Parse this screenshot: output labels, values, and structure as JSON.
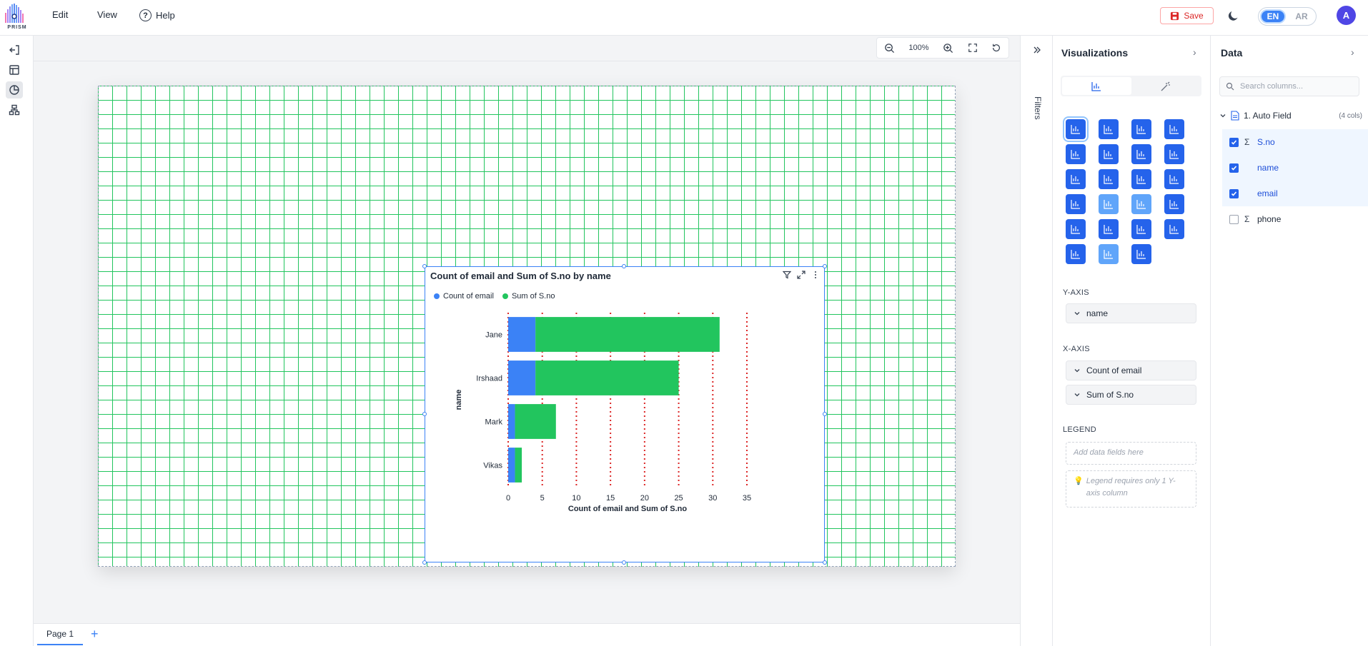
{
  "app": {
    "logo_text": "PRISM"
  },
  "topbar": {
    "menu_edit": "Edit",
    "menu_view": "View",
    "menu_help": "Help",
    "save_label": "Save",
    "lang_en": "EN",
    "lang_ar": "AR",
    "avatar_initial": "A"
  },
  "zoom": {
    "level": "100%"
  },
  "pages": {
    "tabs": [
      {
        "label": "Page 1"
      }
    ],
    "add_label": "+"
  },
  "filters": {
    "label": "Filters"
  },
  "visualizations": {
    "title": "Visualizations",
    "y_axis_label": "Y-AXIS",
    "y_axis_fields": [
      "name"
    ],
    "x_axis_label": "X-AXIS",
    "x_axis_fields": [
      "Count of email",
      "Sum of S.no"
    ],
    "legend_label": "LEGEND",
    "legend_placeholder": "Add data fields here",
    "legend_hint": "Legend requires only 1 Y-axis column"
  },
  "data_panel": {
    "title": "Data",
    "search_placeholder": "Search columns...",
    "source_name": "1. Auto Field",
    "source_count": "(4 cols)",
    "columns": [
      {
        "label": "S.no",
        "checked": true,
        "numeric": true
      },
      {
        "label": "name",
        "checked": true,
        "numeric": false
      },
      {
        "label": "email",
        "checked": true,
        "numeric": false
      },
      {
        "label": "phone",
        "checked": false,
        "numeric": true
      }
    ]
  },
  "colors": {
    "accent": "#3b82f6",
    "series_blue": "#3b82f6",
    "series_green": "#22c55e",
    "grid_red": "#dc2626",
    "canvas_grid": "#22c55e"
  },
  "chart_data": {
    "type": "bar",
    "orientation": "horizontal",
    "stacked": true,
    "title": "Count of email and Sum of S.no by name",
    "categories": [
      "Jane",
      "Irshaad",
      "Mark",
      "Vikas"
    ],
    "series": [
      {
        "name": "Count of email",
        "color": "#3b82f6",
        "values": [
          4,
          4,
          1,
          1
        ]
      },
      {
        "name": "Sum of S.no",
        "color": "#22c55e",
        "values": [
          27,
          21,
          6,
          1
        ]
      }
    ],
    "xlabel": "Count of email and Sum of S.no",
    "ylabel": "name",
    "xlim": [
      0,
      35
    ],
    "xticks": [
      0,
      5,
      10,
      15,
      20,
      25,
      30,
      35
    ],
    "grid": "vertical dotted",
    "legend_position": "top-left"
  }
}
